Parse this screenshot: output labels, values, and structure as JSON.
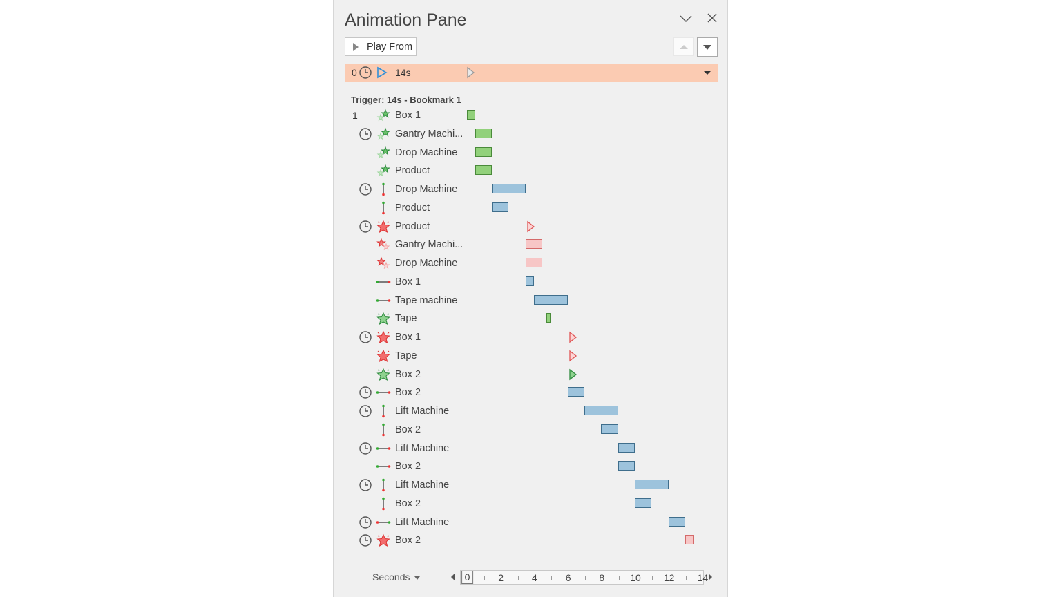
{
  "pane": {
    "title": "Animation Pane",
    "play_from_label": "Play From",
    "selected": {
      "index": "0",
      "label": "14s",
      "color": "#fbcbb2"
    },
    "trigger_label": "Trigger: 14s - Bookmark 1"
  },
  "rows": [
    {
      "num": "1",
      "clock": false,
      "icon": "entrance-fly-icon",
      "label": "Box 1",
      "bar": {
        "kind": "green",
        "start": 0,
        "end": 0.5
      }
    },
    {
      "num": "",
      "clock": true,
      "icon": "entrance-fly-icon",
      "label": "Gantry Machi...",
      "bar": {
        "kind": "green",
        "start": 0.5,
        "end": 1.5
      }
    },
    {
      "num": "",
      "clock": false,
      "icon": "entrance-fly-icon",
      "label": "Drop Machine",
      "bar": {
        "kind": "green",
        "start": 0.5,
        "end": 1.5
      }
    },
    {
      "num": "",
      "clock": false,
      "icon": "entrance-fly-icon",
      "label": "Product",
      "bar": {
        "kind": "green",
        "start": 0.5,
        "end": 1.5
      }
    },
    {
      "num": "",
      "clock": true,
      "icon": "motion-vertical-icon",
      "label": "Drop Machine",
      "bar": {
        "kind": "blue",
        "start": 1.5,
        "end": 3.5
      }
    },
    {
      "num": "",
      "clock": false,
      "icon": "motion-vertical-icon",
      "label": "Product",
      "bar": {
        "kind": "blue",
        "start": 1.5,
        "end": 2.5
      }
    },
    {
      "num": "",
      "clock": true,
      "icon": "exit-burst-icon",
      "label": "Product",
      "bar": {
        "kind": "red-tri",
        "start": 3.5,
        "end": 3.5
      }
    },
    {
      "num": "",
      "clock": false,
      "icon": "exit-fly-icon",
      "label": "Gantry Machi...",
      "bar": {
        "kind": "red",
        "start": 3.5,
        "end": 4.5
      }
    },
    {
      "num": "",
      "clock": false,
      "icon": "exit-fly-icon",
      "label": "Drop Machine",
      "bar": {
        "kind": "red",
        "start": 3.5,
        "end": 4.5
      }
    },
    {
      "num": "",
      "clock": false,
      "icon": "motion-horizontal-icon",
      "label": "Box 1",
      "bar": {
        "kind": "blue",
        "start": 3.5,
        "end": 4
      }
    },
    {
      "num": "",
      "clock": false,
      "icon": "motion-horizontal-icon",
      "label": "Tape machine",
      "bar": {
        "kind": "blue",
        "start": 4,
        "end": 6
      }
    },
    {
      "num": "",
      "clock": false,
      "icon": "entrance-burst-icon",
      "label": "Tape",
      "bar": {
        "kind": "green",
        "start": 4.75,
        "end": 5
      }
    },
    {
      "num": "",
      "clock": true,
      "icon": "exit-burst-icon",
      "label": "Box 1",
      "bar": {
        "kind": "red-tri",
        "start": 6,
        "end": 6
      }
    },
    {
      "num": "",
      "clock": false,
      "icon": "exit-burst-icon",
      "label": "Tape",
      "bar": {
        "kind": "red-tri",
        "start": 6,
        "end": 6
      }
    },
    {
      "num": "",
      "clock": false,
      "icon": "entrance-burst-icon",
      "label": "Box 2",
      "bar": {
        "kind": "green-tri",
        "start": 6,
        "end": 6
      }
    },
    {
      "num": "",
      "clock": true,
      "icon": "motion-horizontal-icon",
      "label": "Box 2",
      "bar": {
        "kind": "blue",
        "start": 6,
        "end": 7
      }
    },
    {
      "num": "",
      "clock": true,
      "icon": "motion-vertical-icon",
      "label": "Lift Machine",
      "bar": {
        "kind": "blue",
        "start": 7,
        "end": 9
      }
    },
    {
      "num": "",
      "clock": false,
      "icon": "motion-vertical-icon",
      "label": "Box 2",
      "bar": {
        "kind": "blue",
        "start": 8,
        "end": 9
      }
    },
    {
      "num": "",
      "clock": true,
      "icon": "motion-horizontal-icon",
      "label": "Lift Machine",
      "bar": {
        "kind": "blue",
        "start": 9,
        "end": 10
      }
    },
    {
      "num": "",
      "clock": false,
      "icon": "motion-horizontal-icon",
      "label": "Box 2",
      "bar": {
        "kind": "blue",
        "start": 9,
        "end": 10
      }
    },
    {
      "num": "",
      "clock": true,
      "icon": "motion-vertical-icon",
      "label": "Lift Machine",
      "bar": {
        "kind": "blue",
        "start": 10,
        "end": 12
      }
    },
    {
      "num": "",
      "clock": false,
      "icon": "motion-vertical-icon",
      "label": "Box 2",
      "bar": {
        "kind": "blue",
        "start": 10,
        "end": 11
      }
    },
    {
      "num": "",
      "clock": true,
      "icon": "motion-horizontal-reverse-icon",
      "label": "Lift Machine",
      "bar": {
        "kind": "blue",
        "start": 12,
        "end": 13
      }
    },
    {
      "num": "",
      "clock": true,
      "icon": "exit-burst-icon",
      "label": "Box 2",
      "bar": {
        "kind": "red",
        "start": 13,
        "end": 13.5
      }
    }
  ],
  "timeline": {
    "units_label": "Seconds",
    "ticks": [
      "0",
      "2",
      "4",
      "6",
      "8",
      "10",
      "12",
      "14"
    ],
    "view_start": 0
  },
  "colors": {
    "entrance": "#5cb85c",
    "exit": "#e84c4c",
    "motion": "#9dc3dc",
    "selection": "#fbcbb2"
  }
}
